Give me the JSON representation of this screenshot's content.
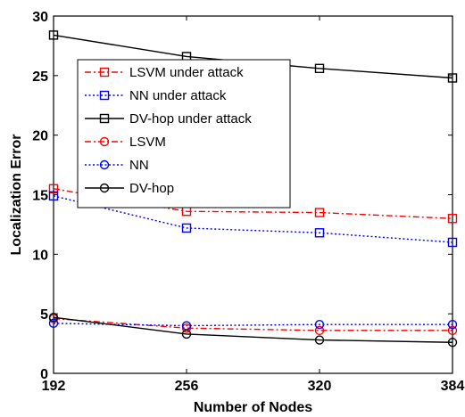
{
  "chart_data": {
    "type": "line",
    "title": "",
    "xlabel": "Number of Nodes",
    "ylabel": "Localization Error",
    "x": [
      192,
      256,
      320,
      384
    ],
    "xticks": [
      "192",
      "256",
      "320",
      "384"
    ],
    "xlim": [
      192,
      384
    ],
    "ylim": [
      0,
      30
    ],
    "yticks": [
      "0",
      "5",
      "10",
      "15",
      "20",
      "25",
      "30"
    ],
    "grid": false,
    "legend_position": "upper-left",
    "series": [
      {
        "name": "LSVM under attack",
        "values": [
          15.5,
          13.6,
          13.5,
          13.0
        ],
        "color": "#ff0000",
        "dash": "dashdot",
        "marker": "square"
      },
      {
        "name": "NN under attack",
        "values": [
          14.9,
          12.2,
          11.8,
          11.0
        ],
        "color": "#0000ff",
        "dash": "dotted",
        "marker": "square"
      },
      {
        "name": "DV-hop under attack",
        "values": [
          28.4,
          26.6,
          25.6,
          24.8
        ],
        "color": "#000000",
        "dash": "solid",
        "marker": "square"
      },
      {
        "name": "LSVM",
        "values": [
          4.6,
          3.8,
          3.6,
          3.6
        ],
        "color": "#ff0000",
        "dash": "dashdot",
        "marker": "circle"
      },
      {
        "name": "NN",
        "values": [
          4.2,
          4.0,
          4.1,
          4.1
        ],
        "color": "#0000ff",
        "dash": "dotted",
        "marker": "circle"
      },
      {
        "name": "DV-hop",
        "values": [
          4.7,
          3.3,
          2.8,
          2.6
        ],
        "color": "#000000",
        "dash": "solid",
        "marker": "circle"
      }
    ]
  }
}
